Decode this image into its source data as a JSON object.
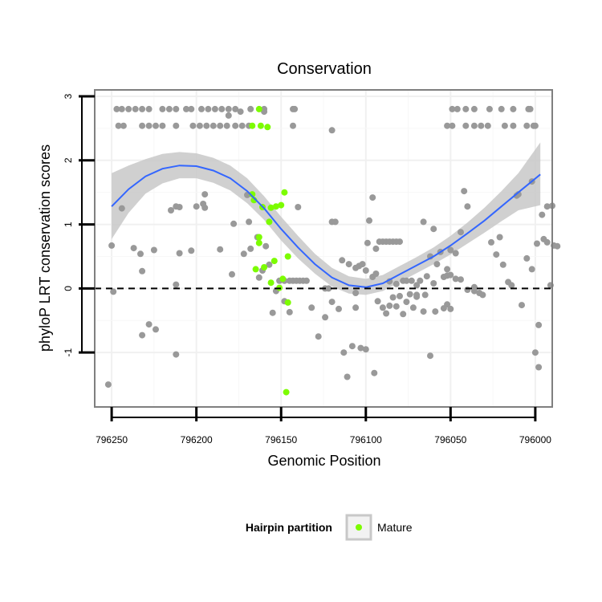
{
  "chart_data": {
    "type": "scatter",
    "title": "Conservation",
    "xlabel": "Genomic Position",
    "ylabel": "phyloP LRT conservation scores",
    "xlim": [
      796260,
      795990
    ],
    "ylim": [
      -1.85,
      3.1
    ],
    "x_reversed": true,
    "x_ticks": [
      796250,
      796200,
      796150,
      796100,
      796050,
      796000
    ],
    "x_tick_labels": [
      "796250",
      "796200",
      "796150",
      "796100",
      "796050",
      "796000"
    ],
    "y_ticks": [
      -1,
      0,
      1,
      2,
      3
    ],
    "y_tick_labels": [
      "-1",
      "0",
      "1",
      "2",
      "3"
    ],
    "grid": true,
    "reference_line": {
      "y": 0,
      "style": "dashed",
      "color": "#000000"
    },
    "legend": {
      "position": "bottom",
      "title": "Hairpin partition",
      "entries": [
        {
          "label": "Mature",
          "color": "#7cfc00"
        }
      ]
    },
    "smooth": {
      "color": "#3366ff",
      "band_color": "#c8c8c8",
      "x": [
        796250,
        796240,
        796230,
        796220,
        796210,
        796200,
        796190,
        796180,
        796170,
        796160,
        796150,
        796140,
        796130,
        796120,
        796110,
        796100,
        796090,
        796080,
        796070,
        796060,
        796050,
        796040,
        796030,
        796020,
        796010,
        795997
      ],
      "y": [
        1.28,
        1.55,
        1.75,
        1.87,
        1.92,
        1.91,
        1.84,
        1.72,
        1.52,
        1.25,
        0.93,
        0.64,
        0.38,
        0.17,
        0.05,
        0.02,
        0.08,
        0.22,
        0.36,
        0.5,
        0.67,
        0.86,
        1.06,
        1.28,
        1.5,
        1.78
      ],
      "lower": [
        0.77,
        1.18,
        1.48,
        1.64,
        1.72,
        1.72,
        1.65,
        1.53,
        1.33,
        1.07,
        0.75,
        0.47,
        0.23,
        0.03,
        -0.08,
        -0.1,
        -0.04,
        0.1,
        0.24,
        0.38,
        0.53,
        0.7,
        0.87,
        1.05,
        1.22,
        1.3
      ],
      "upper": [
        1.8,
        1.92,
        2.02,
        2.1,
        2.13,
        2.11,
        2.04,
        1.92,
        1.72,
        1.44,
        1.12,
        0.82,
        0.54,
        0.32,
        0.19,
        0.15,
        0.21,
        0.35,
        0.49,
        0.64,
        0.82,
        1.03,
        1.26,
        1.52,
        1.8,
        2.28
      ]
    },
    "series": [
      {
        "name": "",
        "color": "#999999",
        "points": [
          [
            796247,
            2.8
          ],
          [
            796244,
            2.8
          ],
          [
            796240,
            2.8
          ],
          [
            796236,
            2.8
          ],
          [
            796232,
            2.8
          ],
          [
            796228,
            2.8
          ],
          [
            796220,
            2.8
          ],
          [
            796216,
            2.8
          ],
          [
            796212,
            2.8
          ],
          [
            796206,
            2.8
          ],
          [
            796203,
            2.8
          ],
          [
            796197,
            2.8
          ],
          [
            796193,
            2.8
          ],
          [
            796189,
            2.8
          ],
          [
            796185,
            2.8
          ],
          [
            796181,
            2.8
          ],
          [
            796177,
            2.8
          ],
          [
            796168,
            2.8
          ],
          [
            796160,
            2.8
          ],
          [
            796143,
            2.8
          ],
          [
            796142,
            2.8
          ],
          [
            796049,
            2.8
          ],
          [
            796046,
            2.8
          ],
          [
            796041,
            2.8
          ],
          [
            796036,
            2.8
          ],
          [
            796027,
            2.8
          ],
          [
            796020,
            2.8
          ],
          [
            796013,
            2.8
          ],
          [
            796004,
            2.8
          ],
          [
            796003,
            2.8
          ],
          [
            796246,
            2.54
          ],
          [
            796243,
            2.54
          ],
          [
            796232,
            2.54
          ],
          [
            796228,
            2.54
          ],
          [
            796224,
            2.54
          ],
          [
            796220,
            2.54
          ],
          [
            796212,
            2.54
          ],
          [
            796202,
            2.54
          ],
          [
            796198,
            2.54
          ],
          [
            796194,
            2.54
          ],
          [
            796190,
            2.54
          ],
          [
            796186,
            2.54
          ],
          [
            796182,
            2.54
          ],
          [
            796177,
            2.54
          ],
          [
            796173,
            2.54
          ],
          [
            796169,
            2.54
          ],
          [
            796143,
            2.54
          ],
          [
            796120,
            2.47
          ],
          [
            796052,
            2.54
          ],
          [
            796049,
            2.54
          ],
          [
            796041,
            2.54
          ],
          [
            796036,
            2.54
          ],
          [
            796032,
            2.54
          ],
          [
            796028,
            2.54
          ],
          [
            796018,
            2.54
          ],
          [
            796013,
            2.54
          ],
          [
            796005,
            2.54
          ],
          [
            796001,
            2.54
          ],
          [
            796000,
            2.54
          ],
          [
            796181,
            2.7
          ],
          [
            796174,
            2.76
          ],
          [
            796160,
            2.76
          ],
          [
            796195,
            1.47
          ],
          [
            796200,
            1.28
          ],
          [
            796210,
            1.27
          ],
          [
            796215,
            1.22
          ],
          [
            796212,
            1.28
          ],
          [
            796195,
            1.26
          ],
          [
            796170,
            1.46
          ],
          [
            796244,
            1.25
          ],
          [
            796196,
            1.32
          ],
          [
            796140,
            1.27
          ],
          [
            796250,
            0.67
          ],
          [
            796237,
            0.63
          ],
          [
            796233,
            0.54
          ],
          [
            796225,
            0.6
          ],
          [
            796210,
            0.55
          ],
          [
            796203,
            0.59
          ],
          [
            796186,
            0.61
          ],
          [
            796178,
            1.01
          ],
          [
            796169,
            1.04
          ],
          [
            796249,
            -0.05
          ],
          [
            796232,
            0.27
          ],
          [
            796212,
            0.06
          ],
          [
            796179,
            0.22
          ],
          [
            796232,
            -0.73
          ],
          [
            796228,
            -0.56
          ],
          [
            796224,
            -0.64
          ],
          [
            796212,
            -1.03
          ],
          [
            796252,
            -1.5
          ],
          [
            796164,
            0.8
          ],
          [
            796159,
            0.66
          ],
          [
            796157,
            0.37
          ],
          [
            796161,
            0.28
          ],
          [
            796168,
            0.62
          ],
          [
            796172,
            0.54
          ],
          [
            796163,
            0.17
          ],
          [
            796153,
            -0.04
          ],
          [
            796148,
            -0.2
          ],
          [
            796145,
            -0.37
          ],
          [
            796143,
            0.12
          ],
          [
            796141,
            0.12
          ],
          [
            796139,
            0.12
          ],
          [
            796137,
            0.12
          ],
          [
            796135,
            0.12
          ],
          [
            796132,
            -0.3
          ],
          [
            796128,
            -0.75
          ],
          [
            796124,
            -0.45
          ],
          [
            796120,
            -0.21
          ],
          [
            796116,
            -0.32
          ],
          [
            796113,
            -1.0
          ],
          [
            796111,
            -1.38
          ],
          [
            796108,
            -0.9
          ],
          [
            796106,
            -0.3
          ],
          [
            796103,
            -0.93
          ],
          [
            796100,
            -0.95
          ],
          [
            796095,
            -1.32
          ],
          [
            796093,
            -0.2
          ],
          [
            796090,
            -0.3
          ],
          [
            796088,
            -0.39
          ],
          [
            796086,
            -0.27
          ],
          [
            796084,
            -0.14
          ],
          [
            796082,
            -0.28
          ],
          [
            796080,
            -0.12
          ],
          [
            796078,
            -0.4
          ],
          [
            796076,
            -0.21
          ],
          [
            796074,
            -0.09
          ],
          [
            796072,
            -0.3
          ],
          [
            796070,
            -0.1
          ],
          [
            796066,
            -0.36
          ],
          [
            796062,
            -1.05
          ],
          [
            796059,
            -0.36
          ],
          [
            796054,
            -0.31
          ],
          [
            796052,
            -0.25
          ],
          [
            796050,
            -0.32
          ],
          [
            796120,
            1.04
          ],
          [
            796118,
            1.04
          ],
          [
            796114,
            0.44
          ],
          [
            796110,
            0.38
          ],
          [
            796106,
            0.32
          ],
          [
            796104,
            0.35
          ],
          [
            796102,
            0.38
          ],
          [
            796100,
            0.28
          ],
          [
            796098,
            1.06
          ],
          [
            796096,
            0.18
          ],
          [
            796094,
            0.62
          ],
          [
            796092,
            0.73
          ],
          [
            796090,
            0.73
          ],
          [
            796088,
            0.73
          ],
          [
            796086,
            0.73
          ],
          [
            796084,
            0.73
          ],
          [
            796082,
            0.73
          ],
          [
            796080,
            0.73
          ],
          [
            796096,
            1.42
          ],
          [
            796099,
            0.71
          ],
          [
            796094,
            0.23
          ],
          [
            796086,
            0.11
          ],
          [
            796082,
            0.07
          ],
          [
            796078,
            0.12
          ],
          [
            796076,
            0.12
          ],
          [
            796073,
            0.12
          ],
          [
            796070,
            0.05
          ],
          [
            796068,
            0.12
          ],
          [
            796066,
            1.04
          ],
          [
            796064,
            0.19
          ],
          [
            796062,
            0.5
          ],
          [
            796060,
            0.08
          ],
          [
            796058,
            0.38
          ],
          [
            796056,
            0.57
          ],
          [
            796054,
            0.18
          ],
          [
            796052,
            0.2
          ],
          [
            796050,
            0.21
          ],
          [
            796047,
            0.15
          ],
          [
            796044,
            0.14
          ],
          [
            796040,
            -0.02
          ],
          [
            796036,
            0.02
          ],
          [
            796033,
            -0.07
          ],
          [
            796036,
            -0.04
          ],
          [
            796060,
            0.93
          ],
          [
            796052,
            0.3
          ],
          [
            796050,
            0.6
          ],
          [
            796047,
            0.55
          ],
          [
            796044,
            0.88
          ],
          [
            796042,
            1.52
          ],
          [
            796040,
            1.28
          ],
          [
            796031,
            -0.1
          ],
          [
            796026,
            0.72
          ],
          [
            796023,
            0.53
          ],
          [
            796021,
            0.8
          ],
          [
            796019,
            0.37
          ],
          [
            796016,
            0.1
          ],
          [
            796014,
            0.05
          ],
          [
            796011,
            1.45
          ],
          [
            796010,
            1.47
          ],
          [
            796008,
            -0.26
          ],
          [
            796005,
            0.47
          ],
          [
            796002,
            0.3
          ],
          [
            795999,
            0.7
          ],
          [
            795996,
            1.15
          ],
          [
            795993,
            1.28
          ],
          [
            795990,
            1.29
          ],
          [
            795998,
            -0.57
          ],
          [
            796000,
            -1.0
          ],
          [
            795998,
            -1.23
          ],
          [
            795995,
            0.77
          ],
          [
            795993,
            0.72
          ],
          [
            795991,
            0.05
          ],
          [
            795989,
            0.67
          ],
          [
            796002,
            1.67
          ],
          [
            795987,
            0.66
          ],
          [
            796070,
            -0.13
          ],
          [
            796065,
            -0.1
          ],
          [
            796106,
            -0.07
          ],
          [
            796122,
            0.0
          ],
          [
            796124,
            0.0
          ],
          [
            796155,
            -0.38
          ],
          [
            796151,
            0.12
          ],
          [
            796148,
            0.12
          ],
          [
            796145,
            0.12
          ]
        ]
      },
      {
        "name": "Mature",
        "color": "#7cfc00",
        "points": [
          [
            796163,
            2.8
          ],
          [
            796167,
            2.54
          ],
          [
            796162,
            2.54
          ],
          [
            796158,
            2.52
          ],
          [
            796167,
            1.47
          ],
          [
            796166,
            1.38
          ],
          [
            796161,
            1.27
          ],
          [
            796156,
            1.26
          ],
          [
            796153,
            1.28
          ],
          [
            796150,
            1.3
          ],
          [
            796148,
            1.5
          ],
          [
            796157,
            1.04
          ],
          [
            796163,
            0.8
          ],
          [
            796163,
            0.71
          ],
          [
            796165,
            0.3
          ],
          [
            796160,
            0.33
          ],
          [
            796156,
            0.09
          ],
          [
            796154,
            0.43
          ],
          [
            796151,
            0.01
          ],
          [
            796149,
            0.15
          ],
          [
            796146,
            0.5
          ],
          [
            796146,
            -0.22
          ],
          [
            796147,
            -1.62
          ]
        ]
      }
    ]
  }
}
